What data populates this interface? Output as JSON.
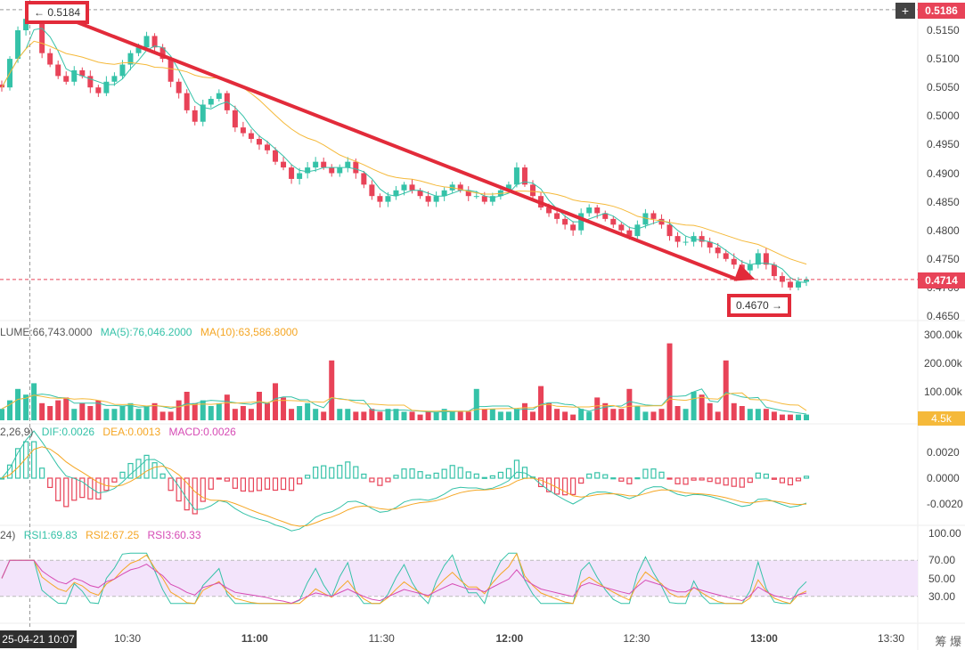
{
  "chart_data": {
    "type": "candlestick",
    "price_axis": {
      "ticks": [
        "0.5150",
        "0.5100",
        "0.5050",
        "0.5000",
        "0.4950",
        "0.4900",
        "0.4850",
        "0.4800",
        "0.4750",
        "0.4700",
        "0.4650"
      ]
    },
    "time_axis": {
      "ticks": [
        "10:30",
        "11:00",
        "11:30",
        "12:00",
        "12:30",
        "13:00",
        "13:30"
      ],
      "cursor_label": "25-04-21 10:07"
    },
    "current_price": "0.4714",
    "crosshair_price": "0.5186",
    "high_tag": "← 0.5184",
    "low_tag": "0.4670 →",
    "trend_line": {
      "from": [
        "10:07",
        0.5184
      ],
      "to": [
        "12:58",
        0.4714
      ]
    },
    "ma_colors": {
      "fast": "#35c2a8",
      "slow": "#f5b93a"
    },
    "close_series": [
      0.505,
      0.51,
      0.515,
      0.517,
      0.5184,
      0.511,
      0.509,
      0.507,
      0.506,
      0.508,
      0.507,
      0.505,
      0.504,
      0.506,
      0.507,
      0.509,
      0.511,
      0.512,
      0.514,
      0.512,
      0.51,
      0.506,
      0.504,
      0.501,
      0.499,
      0.502,
      0.503,
      0.504,
      0.501,
      0.498,
      0.497,
      0.496,
      0.495,
      0.494,
      0.492,
      0.491,
      0.489,
      0.49,
      0.491,
      0.492,
      0.491,
      0.49,
      0.491,
      0.492,
      0.49,
      0.488,
      0.486,
      0.485,
      0.486,
      0.487,
      0.488,
      0.487,
      0.486,
      0.485,
      0.486,
      0.487,
      0.488,
      0.487,
      0.486,
      0.486,
      0.485,
      0.486,
      0.487,
      0.488,
      0.491,
      0.488,
      0.486,
      0.484,
      0.483,
      0.482,
      0.481,
      0.48,
      0.483,
      0.484,
      0.483,
      0.482,
      0.481,
      0.48,
      0.479,
      0.481,
      0.483,
      0.482,
      0.481,
      0.479,
      0.478,
      0.478,
      0.479,
      0.478,
      0.477,
      0.476,
      0.475,
      0.474,
      0.473,
      0.474,
      0.476,
      0.474,
      0.472,
      0.471,
      0.47,
      0.471,
      0.4714
    ],
    "volume": {
      "legend": [
        "LUME:66,743.0000",
        "MA(5):76,046.2000",
        "MA(10):63,586.8000"
      ],
      "ticks": [
        "300.00k",
        "200.00k",
        "100.00k"
      ],
      "current": "4.5k",
      "values_k": [
        40,
        70,
        110,
        90,
        130,
        60,
        50,
        70,
        80,
        40,
        60,
        50,
        70,
        40,
        40,
        50,
        60,
        40,
        50,
        60,
        30,
        30,
        70,
        100,
        60,
        70,
        50,
        60,
        90,
        40,
        50,
        40,
        100,
        60,
        130,
        80,
        40,
        50,
        60,
        40,
        30,
        210,
        40,
        40,
        30,
        30,
        40,
        30,
        40,
        40,
        30,
        30,
        20,
        30,
        30,
        40,
        30,
        30,
        30,
        110,
        40,
        40,
        30,
        30,
        40,
        60,
        30,
        120,
        60,
        40,
        30,
        20,
        40,
        30,
        80,
        60,
        40,
        40,
        110,
        50,
        30,
        30,
        40,
        270,
        50,
        40,
        100,
        90,
        60,
        30,
        210,
        60,
        50,
        40,
        40,
        40,
        30,
        20,
        20,
        20,
        20
      ]
    },
    "macd": {
      "legend": [
        "2,26,9)",
        "DIF:0.0026",
        "DEA:0.0013",
        "MACD:0.0026"
      ],
      "ticks": [
        "0.0020",
        "0.0000",
        "-0.0020"
      ]
    },
    "rsi": {
      "legend": [
        "24)",
        "RSI1:69.83",
        "RSI2:67.25",
        "RSI3:60.33"
      ],
      "ticks": [
        "100.00",
        "70.00",
        "50.00",
        "30.00"
      ]
    },
    "corner_text": "筹 爆"
  }
}
